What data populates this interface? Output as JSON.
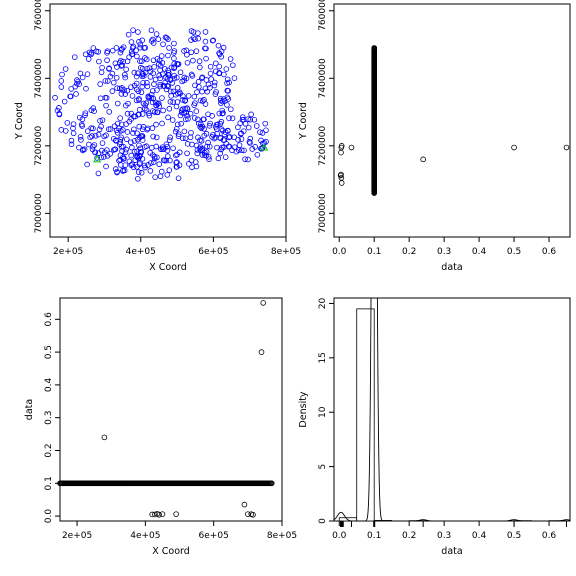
{
  "chart_data": [
    {
      "type": "scatter",
      "xlabel": "X Coord",
      "ylabel": "Y Coord",
      "xlim": [
        150000,
        800000
      ],
      "ylim": [
        6930000,
        7620000
      ],
      "xticks": [
        {
          "v": 200000,
          "label": "2e+05"
        },
        {
          "v": 400000,
          "label": "4e+05"
        },
        {
          "v": 600000,
          "label": "6e+05"
        },
        {
          "v": 800000,
          "label": "8e+05"
        }
      ],
      "yticks": [
        {
          "v": 7000000,
          "label": "7000000"
        },
        {
          "v": 7200000,
          "label": "7200000"
        },
        {
          "v": 7400000,
          "label": "7400000"
        },
        {
          "v": 7600000,
          "label": "7600000"
        }
      ],
      "colors": {
        "points": "#0000ff",
        "highlight": "#00cc00"
      },
      "highlight": [
        {
          "x": 280000,
          "y": 7160000
        },
        {
          "x": 740000,
          "y": 7195000
        }
      ],
      "clusters": [
        {
          "cx": 310000,
          "cy": 7330000,
          "rx": 150000,
          "ry": 170000,
          "n": 150
        },
        {
          "cx": 420000,
          "cy": 7420000,
          "rx": 90000,
          "ry": 140000,
          "n": 120
        },
        {
          "cx": 560000,
          "cy": 7410000,
          "rx": 100000,
          "ry": 140000,
          "n": 120
        },
        {
          "cx": 480000,
          "cy": 7220000,
          "rx": 170000,
          "ry": 120000,
          "n": 150
        },
        {
          "cx": 650000,
          "cy": 7230000,
          "rx": 110000,
          "ry": 80000,
          "n": 80
        },
        {
          "cx": 380000,
          "cy": 7160000,
          "rx": 140000,
          "ry": 60000,
          "n": 60
        }
      ]
    },
    {
      "type": "scatter",
      "xlabel": "data",
      "ylabel": "Y Coord",
      "xlim": [
        -0.015,
        0.66
      ],
      "ylim": [
        6930000,
        7620000
      ],
      "xticks": [
        {
          "v": 0,
          "label": "0.0"
        },
        {
          "v": 0.1,
          "label": "0.1"
        },
        {
          "v": 0.2,
          "label": "0.2"
        },
        {
          "v": 0.3,
          "label": "0.3"
        },
        {
          "v": 0.4,
          "label": "0.4"
        },
        {
          "v": 0.5,
          "label": "0.5"
        },
        {
          "v": 0.6,
          "label": "0.6"
        }
      ],
      "yticks": [
        {
          "v": 7000000,
          "label": "7000000"
        },
        {
          "v": 7200000,
          "label": "7200000"
        },
        {
          "v": 7400000,
          "label": "7400000"
        },
        {
          "v": 7600000,
          "label": "7600000"
        }
      ],
      "column": {
        "x": 0.1,
        "ymin": 7060000,
        "ymax": 7490000,
        "n": 300
      },
      "points": [
        {
          "x": 0.005,
          "y": 7180000
        },
        {
          "x": 0.006,
          "y": 7195000
        },
        {
          "x": 0.007,
          "y": 7200000
        },
        {
          "x": 0.005,
          "y": 7115000
        },
        {
          "x": 0.006,
          "y": 7105000
        },
        {
          "x": 0.007,
          "y": 7090000
        },
        {
          "x": 0.004,
          "y": 7112000
        },
        {
          "x": 0.035,
          "y": 7195000
        },
        {
          "x": 0.24,
          "y": 7160000
        },
        {
          "x": 0.5,
          "y": 7195000
        },
        {
          "x": 0.65,
          "y": 7195000
        }
      ]
    },
    {
      "type": "scatter",
      "xlabel": "X Coord",
      "ylabel": "data",
      "xlim": [
        150000,
        800000
      ],
      "ylim": [
        -0.015,
        0.665
      ],
      "xticks": [
        {
          "v": 200000,
          "label": "2e+05"
        },
        {
          "v": 400000,
          "label": "4e+05"
        },
        {
          "v": 600000,
          "label": "6e+05"
        },
        {
          "v": 800000,
          "label": "8e+05"
        }
      ],
      "yticks": [
        {
          "v": 0,
          "label": "0.0"
        },
        {
          "v": 0.1,
          "label": "0.1"
        },
        {
          "v": 0.2,
          "label": "0.2"
        },
        {
          "v": 0.3,
          "label": "0.3"
        },
        {
          "v": 0.4,
          "label": "0.4"
        },
        {
          "v": 0.5,
          "label": "0.5"
        },
        {
          "v": 0.6,
          "label": "0.6"
        }
      ],
      "row": {
        "y": 0.1,
        "xmin": 150000,
        "xmax": 770000,
        "n": 260
      },
      "points": [
        {
          "x": 280000,
          "y": 0.24
        },
        {
          "x": 740000,
          "y": 0.5
        },
        {
          "x": 745000,
          "y": 0.65
        },
        {
          "x": 420000,
          "y": 0.005
        },
        {
          "x": 428000,
          "y": 0.005
        },
        {
          "x": 435000,
          "y": 0.007
        },
        {
          "x": 440000,
          "y": 0.004
        },
        {
          "x": 450000,
          "y": 0.006
        },
        {
          "x": 490000,
          "y": 0.006
        },
        {
          "x": 690000,
          "y": 0.035
        },
        {
          "x": 700000,
          "y": 0.006
        },
        {
          "x": 710000,
          "y": 0.006
        },
        {
          "x": 715000,
          "y": 0.004
        }
      ]
    },
    {
      "type": "bar",
      "subtype": "histogram-with-density",
      "xlabel": "data",
      "ylabel": "Density",
      "xlim": [
        -0.015,
        0.66
      ],
      "ylim": [
        0,
        20.5
      ],
      "xticks": [
        {
          "v": 0,
          "label": "0.0"
        },
        {
          "v": 0.1,
          "label": "0.1"
        },
        {
          "v": 0.2,
          "label": "0.2"
        },
        {
          "v": 0.3,
          "label": "0.3"
        },
        {
          "v": 0.4,
          "label": "0.4"
        },
        {
          "v": 0.5,
          "label": "0.5"
        },
        {
          "v": 0.6,
          "label": "0.6"
        }
      ],
      "yticks": [
        {
          "v": 0,
          "label": "0"
        },
        {
          "v": 5,
          "label": "5"
        },
        {
          "v": 10,
          "label": "10"
        },
        {
          "v": 15,
          "label": "15"
        },
        {
          "v": 20,
          "label": "20"
        }
      ],
      "bins": [
        {
          "x0": 0.0,
          "x1": 0.05,
          "density": 0.3
        },
        {
          "x0": 0.05,
          "x1": 0.1,
          "density": 19.5
        },
        {
          "x0": 0.1,
          "x1": 0.15,
          "density": 0.05
        },
        {
          "x0": 0.15,
          "x1": 0.2,
          "density": 0
        },
        {
          "x0": 0.2,
          "x1": 0.25,
          "density": 0.03
        },
        {
          "x0": 0.25,
          "x1": 0.3,
          "density": 0
        },
        {
          "x0": 0.3,
          "x1": 0.35,
          "density": 0
        },
        {
          "x0": 0.35,
          "x1": 0.4,
          "density": 0
        },
        {
          "x0": 0.4,
          "x1": 0.45,
          "density": 0
        },
        {
          "x0": 0.45,
          "x1": 0.5,
          "density": 0
        },
        {
          "x0": 0.5,
          "x1": 0.55,
          "density": 0.03
        },
        {
          "x0": 0.55,
          "x1": 0.6,
          "density": 0
        },
        {
          "x0": 0.6,
          "x1": 0.65,
          "density": 0.03
        }
      ],
      "density_peaks": [
        {
          "mu": 0.1,
          "sigma": 0.006,
          "weight": 0.97
        },
        {
          "mu": 0.005,
          "sigma": 0.01,
          "weight": 0.02
        },
        {
          "mu": 0.24,
          "sigma": 0.01,
          "weight": 0.003
        },
        {
          "mu": 0.5,
          "sigma": 0.01,
          "weight": 0.003
        },
        {
          "mu": 0.65,
          "sigma": 0.01,
          "weight": 0.003
        }
      ],
      "rug": [
        0.005,
        0.007,
        0.01,
        0.035,
        0.1,
        0.24,
        0.5,
        0.65
      ]
    }
  ]
}
